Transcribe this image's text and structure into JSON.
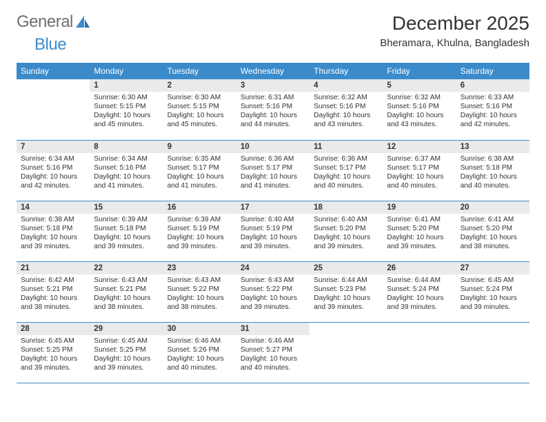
{
  "logo": {
    "text1": "General",
    "text2": "Blue"
  },
  "title": "December 2025",
  "location": "Bheramara, Khulna, Bangladesh",
  "colors": {
    "header_bg": "#3b8bcb",
    "header_text": "#ffffff",
    "daynum_bg": "#e9eaeb",
    "border": "#3b8bcb",
    "text": "#333333",
    "logo_gray": "#6d6e71",
    "logo_blue": "#3b8bcb",
    "page_bg": "#ffffff"
  },
  "typography": {
    "title_fontsize": 28,
    "location_fontsize": 15,
    "weekday_fontsize": 12,
    "daynum_fontsize": 11.5,
    "body_fontsize": 10.2,
    "logo_fontsize": 24
  },
  "weekdays": [
    "Sunday",
    "Monday",
    "Tuesday",
    "Wednesday",
    "Thursday",
    "Friday",
    "Saturday"
  ],
  "weeks": [
    [
      null,
      {
        "n": "1",
        "sunrise": "Sunrise: 6:30 AM",
        "sunset": "Sunset: 5:15 PM",
        "day1": "Daylight: 10 hours",
        "day2": "and 45 minutes."
      },
      {
        "n": "2",
        "sunrise": "Sunrise: 6:30 AM",
        "sunset": "Sunset: 5:15 PM",
        "day1": "Daylight: 10 hours",
        "day2": "and 45 minutes."
      },
      {
        "n": "3",
        "sunrise": "Sunrise: 6:31 AM",
        "sunset": "Sunset: 5:16 PM",
        "day1": "Daylight: 10 hours",
        "day2": "and 44 minutes."
      },
      {
        "n": "4",
        "sunrise": "Sunrise: 6:32 AM",
        "sunset": "Sunset: 5:16 PM",
        "day1": "Daylight: 10 hours",
        "day2": "and 43 minutes."
      },
      {
        "n": "5",
        "sunrise": "Sunrise: 6:32 AM",
        "sunset": "Sunset: 5:16 PM",
        "day1": "Daylight: 10 hours",
        "day2": "and 43 minutes."
      },
      {
        "n": "6",
        "sunrise": "Sunrise: 6:33 AM",
        "sunset": "Sunset: 5:16 PM",
        "day1": "Daylight: 10 hours",
        "day2": "and 42 minutes."
      }
    ],
    [
      {
        "n": "7",
        "sunrise": "Sunrise: 6:34 AM",
        "sunset": "Sunset: 5:16 PM",
        "day1": "Daylight: 10 hours",
        "day2": "and 42 minutes."
      },
      {
        "n": "8",
        "sunrise": "Sunrise: 6:34 AM",
        "sunset": "Sunset: 5:16 PM",
        "day1": "Daylight: 10 hours",
        "day2": "and 41 minutes."
      },
      {
        "n": "9",
        "sunrise": "Sunrise: 6:35 AM",
        "sunset": "Sunset: 5:17 PM",
        "day1": "Daylight: 10 hours",
        "day2": "and 41 minutes."
      },
      {
        "n": "10",
        "sunrise": "Sunrise: 6:36 AM",
        "sunset": "Sunset: 5:17 PM",
        "day1": "Daylight: 10 hours",
        "day2": "and 41 minutes."
      },
      {
        "n": "11",
        "sunrise": "Sunrise: 6:36 AM",
        "sunset": "Sunset: 5:17 PM",
        "day1": "Daylight: 10 hours",
        "day2": "and 40 minutes."
      },
      {
        "n": "12",
        "sunrise": "Sunrise: 6:37 AM",
        "sunset": "Sunset: 5:17 PM",
        "day1": "Daylight: 10 hours",
        "day2": "and 40 minutes."
      },
      {
        "n": "13",
        "sunrise": "Sunrise: 6:38 AM",
        "sunset": "Sunset: 5:18 PM",
        "day1": "Daylight: 10 hours",
        "day2": "and 40 minutes."
      }
    ],
    [
      {
        "n": "14",
        "sunrise": "Sunrise: 6:38 AM",
        "sunset": "Sunset: 5:18 PM",
        "day1": "Daylight: 10 hours",
        "day2": "and 39 minutes."
      },
      {
        "n": "15",
        "sunrise": "Sunrise: 6:39 AM",
        "sunset": "Sunset: 5:18 PM",
        "day1": "Daylight: 10 hours",
        "day2": "and 39 minutes."
      },
      {
        "n": "16",
        "sunrise": "Sunrise: 6:39 AM",
        "sunset": "Sunset: 5:19 PM",
        "day1": "Daylight: 10 hours",
        "day2": "and 39 minutes."
      },
      {
        "n": "17",
        "sunrise": "Sunrise: 6:40 AM",
        "sunset": "Sunset: 5:19 PM",
        "day1": "Daylight: 10 hours",
        "day2": "and 39 minutes."
      },
      {
        "n": "18",
        "sunrise": "Sunrise: 6:40 AM",
        "sunset": "Sunset: 5:20 PM",
        "day1": "Daylight: 10 hours",
        "day2": "and 39 minutes."
      },
      {
        "n": "19",
        "sunrise": "Sunrise: 6:41 AM",
        "sunset": "Sunset: 5:20 PM",
        "day1": "Daylight: 10 hours",
        "day2": "and 39 minutes."
      },
      {
        "n": "20",
        "sunrise": "Sunrise: 6:41 AM",
        "sunset": "Sunset: 5:20 PM",
        "day1": "Daylight: 10 hours",
        "day2": "and 38 minutes."
      }
    ],
    [
      {
        "n": "21",
        "sunrise": "Sunrise: 6:42 AM",
        "sunset": "Sunset: 5:21 PM",
        "day1": "Daylight: 10 hours",
        "day2": "and 38 minutes."
      },
      {
        "n": "22",
        "sunrise": "Sunrise: 6:43 AM",
        "sunset": "Sunset: 5:21 PM",
        "day1": "Daylight: 10 hours",
        "day2": "and 38 minutes."
      },
      {
        "n": "23",
        "sunrise": "Sunrise: 6:43 AM",
        "sunset": "Sunset: 5:22 PM",
        "day1": "Daylight: 10 hours",
        "day2": "and 38 minutes."
      },
      {
        "n": "24",
        "sunrise": "Sunrise: 6:43 AM",
        "sunset": "Sunset: 5:22 PM",
        "day1": "Daylight: 10 hours",
        "day2": "and 39 minutes."
      },
      {
        "n": "25",
        "sunrise": "Sunrise: 6:44 AM",
        "sunset": "Sunset: 5:23 PM",
        "day1": "Daylight: 10 hours",
        "day2": "and 39 minutes."
      },
      {
        "n": "26",
        "sunrise": "Sunrise: 6:44 AM",
        "sunset": "Sunset: 5:24 PM",
        "day1": "Daylight: 10 hours",
        "day2": "and 39 minutes."
      },
      {
        "n": "27",
        "sunrise": "Sunrise: 6:45 AM",
        "sunset": "Sunset: 5:24 PM",
        "day1": "Daylight: 10 hours",
        "day2": "and 39 minutes."
      }
    ],
    [
      {
        "n": "28",
        "sunrise": "Sunrise: 6:45 AM",
        "sunset": "Sunset: 5:25 PM",
        "day1": "Daylight: 10 hours",
        "day2": "and 39 minutes."
      },
      {
        "n": "29",
        "sunrise": "Sunrise: 6:45 AM",
        "sunset": "Sunset: 5:25 PM",
        "day1": "Daylight: 10 hours",
        "day2": "and 39 minutes."
      },
      {
        "n": "30",
        "sunrise": "Sunrise: 6:46 AM",
        "sunset": "Sunset: 5:26 PM",
        "day1": "Daylight: 10 hours",
        "day2": "and 40 minutes."
      },
      {
        "n": "31",
        "sunrise": "Sunrise: 6:46 AM",
        "sunset": "Sunset: 5:27 PM",
        "day1": "Daylight: 10 hours",
        "day2": "and 40 minutes."
      },
      null,
      null,
      null
    ]
  ]
}
